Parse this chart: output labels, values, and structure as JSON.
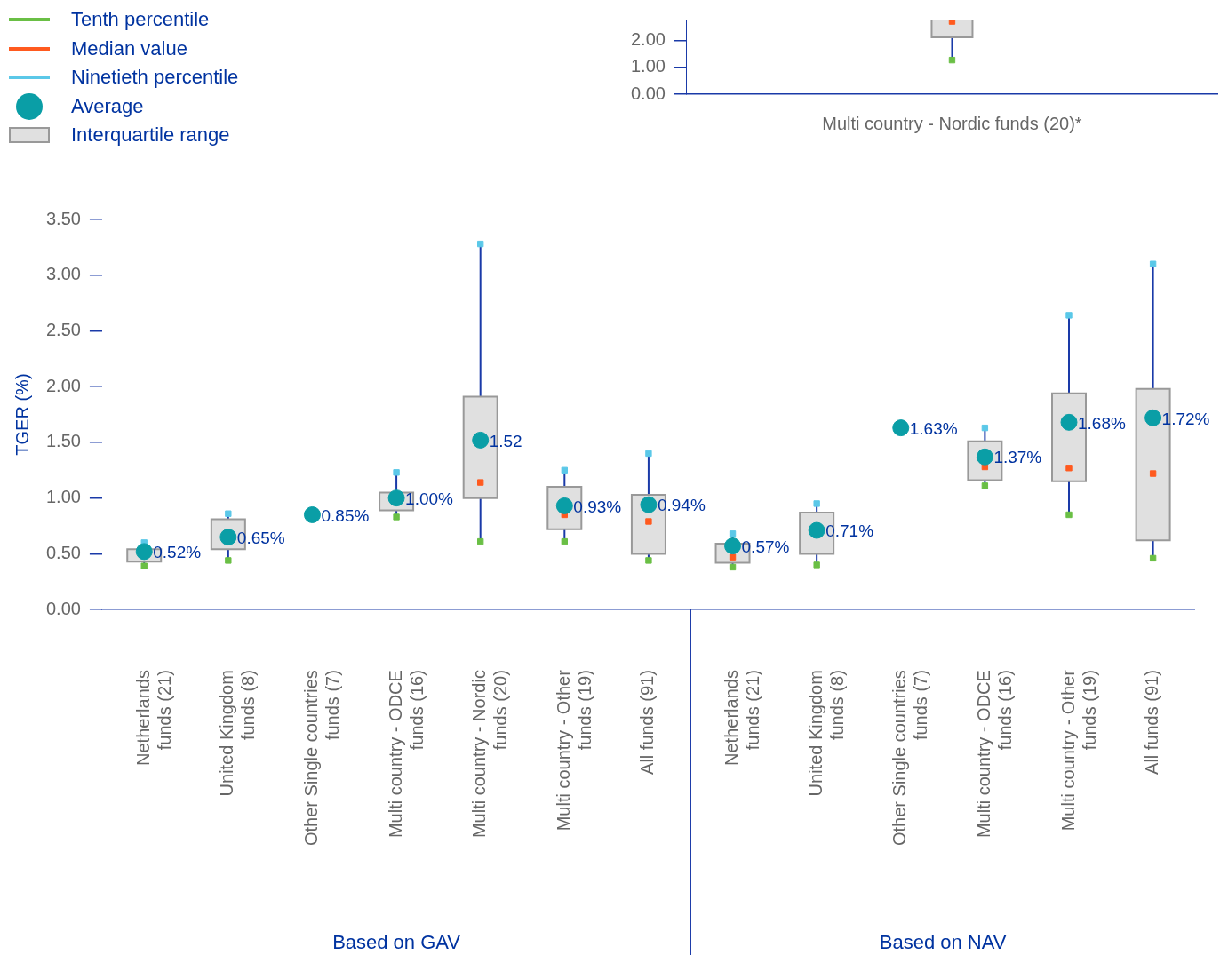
{
  "chart_data": [
    {
      "type": "box",
      "categories": [
        "Multi country - Nordic funds (20)*"
      ],
      "ylim": [
        0,
        2.78
      ],
      "yticks": [
        {
          "value": 0,
          "label": "0.00"
        },
        {
          "value": 1,
          "label": "1.00"
        },
        {
          "value": 2,
          "label": "2.00"
        }
      ],
      "series": [
        {
          "type": "scatter",
          "marker": "square",
          "color": "#6abf45",
          "values": [
            1.27
          ]
        },
        {
          "type": "scatter",
          "marker": "square",
          "color": "#ff5a1f",
          "values": [
            2.71
          ]
        },
        {
          "type": "box",
          "color": "#e0e0e0",
          "boxes": [
            {
              "low": 1.27,
              "q1": 2.12,
              "q3": 2.78,
              "high": 2.78
            }
          ]
        }
      ]
    },
    {
      "type": "box",
      "ylabel": "TGER (%)",
      "legend": "top left",
      "ylim": [
        0,
        3.5
      ],
      "yticks": [
        {
          "value": 0,
          "label": "0.00"
        },
        {
          "value": 0.5,
          "label": "0.50"
        },
        {
          "value": 1,
          "label": "1.00"
        },
        {
          "value": 1.5,
          "label": "1.50"
        },
        {
          "value": 2,
          "label": "2.00"
        },
        {
          "value": 2.5,
          "label": "2.50"
        },
        {
          "value": 3,
          "label": "3.00"
        },
        {
          "value": 3.5,
          "label": "3.50"
        }
      ],
      "categories": [
        "Netherlands funds (21)",
        "United Kingdom funds (8)",
        "Other Single countries funds (7)",
        "Multi country - ODCE funds (16)",
        "Multi country - Nordic funds (20)",
        "Multi country - Other funds (19)",
        "All funds (91)",
        "Netherlands funds (21)",
        "United Kingdom funds (8)",
        "Other Single countries funds (7)",
        "Multi country - ODCE funds (16)",
        "Multi country - Other funds (19)",
        "All funds (91)"
      ],
      "annotations": [
        "Based on GAV",
        "Based on NAV"
      ],
      "series": [
        {
          "name": "Tenth percentile",
          "type": "scatter",
          "marker": "square",
          "color": "#6abf45",
          "values": [
            0.39,
            0.44,
            null,
            0.83,
            0.61,
            0.61,
            0.44,
            0.38,
            0.4,
            null,
            1.11,
            0.85,
            0.46
          ]
        },
        {
          "name": "Median value",
          "type": "scatter",
          "marker": "square",
          "color": "#ff5a1f",
          "values": [
            null,
            null,
            null,
            null,
            1.14,
            0.85,
            0.79,
            0.47,
            null,
            null,
            1.28,
            1.27,
            1.22
          ]
        },
        {
          "name": "Ninetieth percentile",
          "type": "scatter",
          "marker": "square",
          "color": "#5bc8e8",
          "values": [
            0.6,
            0.86,
            null,
            1.23,
            3.28,
            1.25,
            1.4,
            0.68,
            0.95,
            null,
            1.63,
            2.64,
            3.1
          ]
        },
        {
          "name": "Average",
          "type": "scatter",
          "marker": "circle",
          "color": "#0a9ea6",
          "values": [
            0.52,
            0.65,
            0.85,
            1.0,
            1.52,
            0.93,
            0.94,
            0.57,
            0.71,
            1.63,
            1.37,
            1.68,
            1.72
          ],
          "value_labels": [
            "0.52%",
            "0.65%",
            "0.85%",
            "1.00%",
            "1.52",
            "0.93%",
            "0.94%",
            "0.57%",
            "0.71%",
            "1.63%",
            "1.37%",
            "1.68%",
            "1.72%"
          ]
        },
        {
          "name": "Interquartile range",
          "type": "box",
          "color": "#e0e0e0",
          "boxes": [
            {
              "low": 0.39,
              "q1": 0.43,
              "q3": 0.54,
              "high": 0.6
            },
            {
              "low": 0.44,
              "q1": 0.54,
              "q3": 0.81,
              "high": 0.86
            },
            null,
            {
              "low": 0.83,
              "q1": 0.89,
              "q3": 1.05,
              "high": 1.23
            },
            {
              "low": 0.61,
              "q1": 1.0,
              "q3": 1.91,
              "high": 3.28
            },
            {
              "low": 0.61,
              "q1": 0.72,
              "q3": 1.1,
              "high": 1.25
            },
            {
              "low": 0.44,
              "q1": 0.5,
              "q3": 1.03,
              "high": 1.4
            },
            {
              "low": 0.38,
              "q1": 0.42,
              "q3": 0.59,
              "high": 0.68
            },
            {
              "low": 0.4,
              "q1": 0.5,
              "q3": 0.87,
              "high": 0.95
            },
            null,
            {
              "low": 1.11,
              "q1": 1.16,
              "q3": 1.51,
              "high": 1.63
            },
            {
              "low": 0.85,
              "q1": 1.15,
              "q3": 1.94,
              "high": 2.64
            },
            {
              "low": 0.46,
              "q1": 0.62,
              "q3": 1.98,
              "high": 3.1
            }
          ]
        }
      ]
    }
  ]
}
